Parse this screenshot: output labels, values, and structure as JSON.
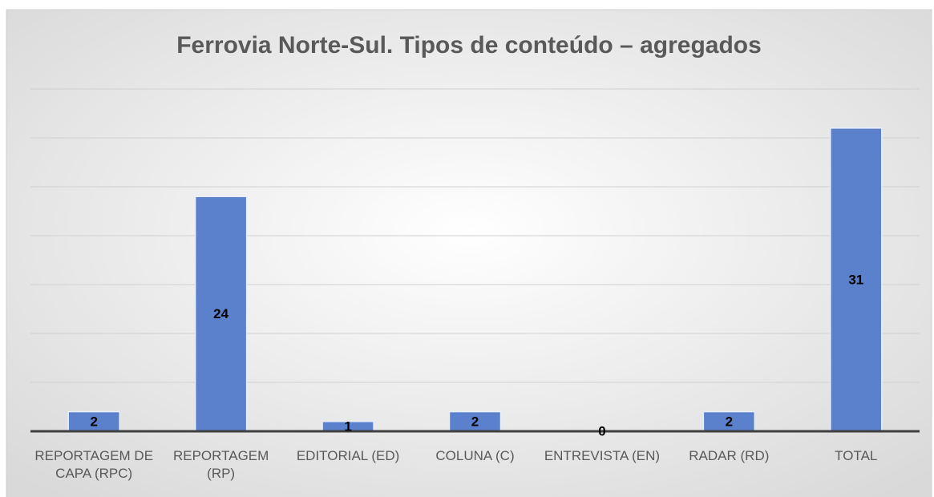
{
  "chart_data": {
    "type": "bar",
    "title": "Ferrovia Norte-Sul. Tipos de conteúdo – agregados",
    "categories": [
      "REPORTAGEM DE CAPA (RPC)",
      "REPORTAGEM (RP)",
      "EDITORIAL (ED)",
      "COLUNA (C)",
      "ENTREVISTA (EN)",
      "RADAR (RD)",
      "TOTAL"
    ],
    "values": [
      2,
      24,
      1,
      2,
      0,
      2,
      31
    ],
    "color": "#5b80cc",
    "ylim": [
      0,
      35
    ],
    "yticks": [
      0,
      5,
      10,
      15,
      20,
      25,
      30,
      35
    ],
    "grid": true
  }
}
